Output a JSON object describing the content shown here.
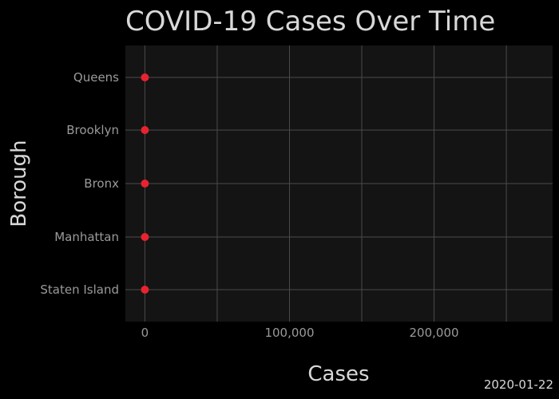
{
  "colors": {
    "page_background": "#000000",
    "plot_background": "#141414",
    "grid": "#4a4a4a",
    "marker": "#e8232f",
    "title_text": "#d8d8d8",
    "tick_text": "#9a9a9a"
  },
  "chart_data": {
    "type": "scatter",
    "title": "COVID-19 Cases Over Time",
    "xlabel": "Cases",
    "ylabel": "Borough",
    "frame_label": "2020-01-22",
    "categories": [
      "Queens",
      "Brooklyn",
      "Bronx",
      "Manhattan",
      "Staten Island"
    ],
    "values": [
      0,
      0,
      0,
      0,
      0
    ],
    "xlim": [
      -13500,
      282000
    ],
    "x_ticks": [
      0,
      100000,
      200000
    ],
    "x_tick_labels": [
      "0",
      "100,000",
      "200,000"
    ],
    "x_grid": [
      0,
      50000,
      100000,
      150000,
      200000,
      250000
    ],
    "grid": true,
    "marker": "circle",
    "legend": "none"
  }
}
